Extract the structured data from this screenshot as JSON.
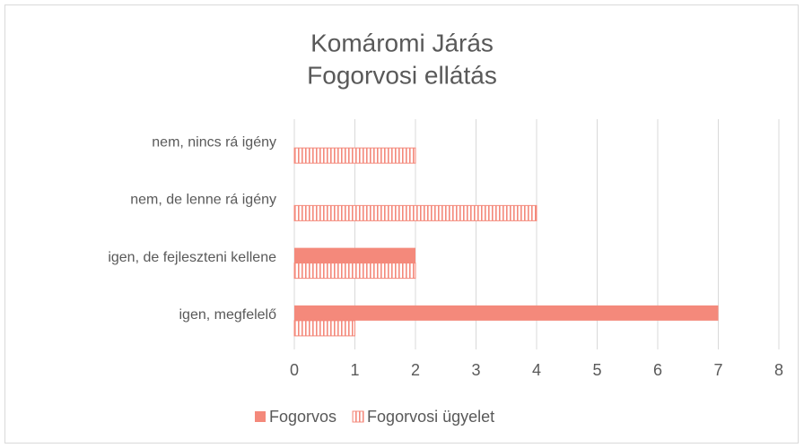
{
  "chart_data": {
    "type": "hbar",
    "title": [
      "Komáromi Járás",
      "Fogorvosi ellátás"
    ],
    "categories": [
      "nem, nincs rá igény",
      "nem, de lenne rá igény",
      "igen, de fejleszteni kellene",
      "igen, megfelelő"
    ],
    "series": [
      {
        "name": "Fogorvos",
        "color": "#f4897b",
        "pattern": "solid",
        "values": [
          0,
          0,
          2,
          7
        ]
      },
      {
        "name": "Fogorvosi ügyelet",
        "color": "#f4897b",
        "pattern": "vertical-stripes",
        "values": [
          2,
          4,
          2,
          1
        ]
      }
    ],
    "xlim": [
      0,
      8
    ],
    "xticks": [
      0,
      1,
      2,
      3,
      4,
      5,
      6,
      7,
      8
    ],
    "grid": true,
    "legend": "bottom"
  }
}
